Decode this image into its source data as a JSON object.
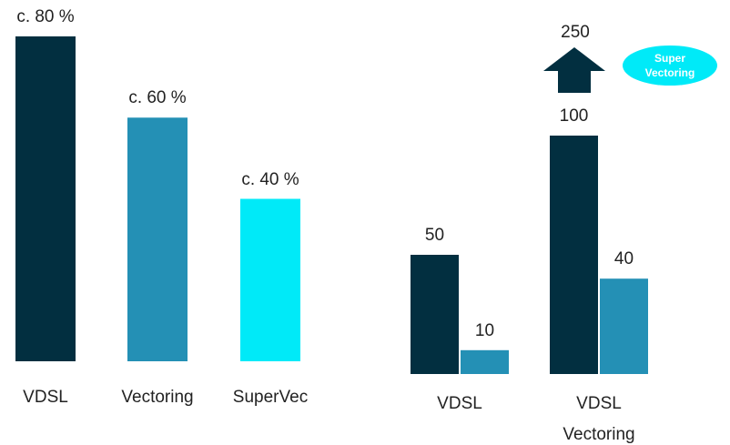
{
  "chart_data": [
    {
      "type": "bar",
      "categories": [
        "VDSL",
        "Vectoring",
        "SuperVec"
      ],
      "values": [
        80,
        60,
        40
      ],
      "value_labels": [
        "c. 80 %",
        "c. 60 %",
        "c. 40 %"
      ],
      "colors": [
        "#022f40",
        "#2490b5",
        "#00eaf8"
      ]
    },
    {
      "type": "grouped_bar",
      "categories": [
        "VDSL",
        "VDSL Vectoring"
      ],
      "series": [
        {
          "color": "#022f40",
          "values": [
            50,
            100
          ]
        },
        {
          "color": "#2490b5",
          "values": [
            10,
            40
          ]
        }
      ],
      "annotations": [
        "250",
        "Super Vectoring"
      ]
    }
  ]
}
